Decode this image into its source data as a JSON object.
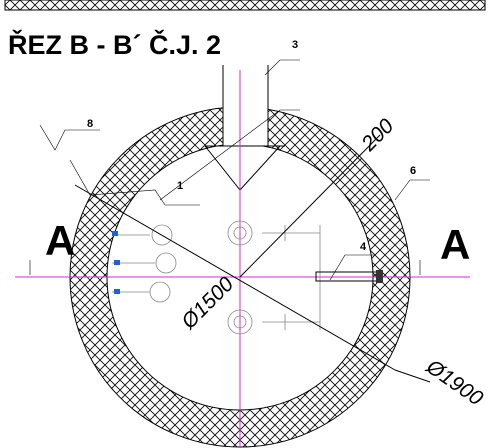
{
  "title": "ŘEZ  B - B´  Č.J. 2",
  "callouts": [
    "3",
    "8",
    "1",
    "6",
    "4"
  ],
  "section_marks": [
    "A",
    "A"
  ],
  "dimensions": [
    "200",
    "Ø1500",
    "Ø1900"
  ]
}
